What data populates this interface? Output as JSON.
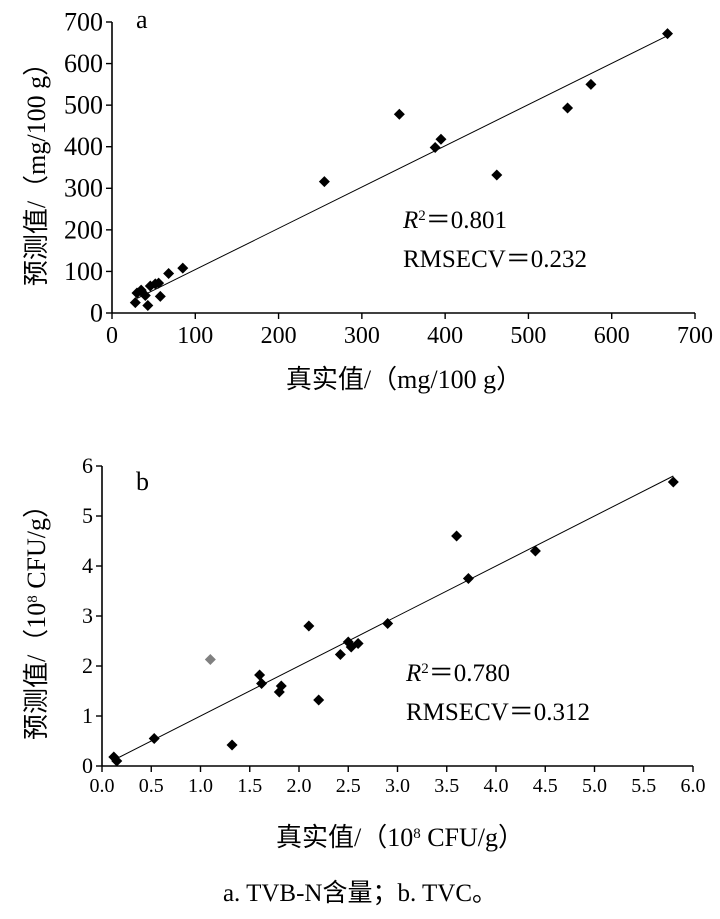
{
  "chart_data": [
    {
      "type": "scatter",
      "panel": "a",
      "xlabel": "真实值/（mg/100 g）",
      "ylabel": "预测值/（mg/100 g）",
      "xlim": [
        0,
        700
      ],
      "ylim": [
        0,
        700
      ],
      "xticks": [
        "0",
        "100",
        "200",
        "300",
        "400",
        "500",
        "600",
        "700"
      ],
      "yticks": [
        "0",
        "100",
        "200",
        "300",
        "400",
        "500",
        "600",
        "700"
      ],
      "annotation_r2_label": "R",
      "annotation_r2_value": "＝0.801",
      "annotation_rmsecv": "RMSECV＝0.232",
      "fit_line": [
        [
          30,
          35
        ],
        [
          667,
          667
        ]
      ],
      "points": [
        {
          "x": 28,
          "y": 25,
          "c": "#000000"
        },
        {
          "x": 30,
          "y": 48,
          "c": "#000000"
        },
        {
          "x": 35,
          "y": 55,
          "c": "#000000"
        },
        {
          "x": 40,
          "y": 42,
          "c": "#000000"
        },
        {
          "x": 43,
          "y": 18,
          "c": "#000000"
        },
        {
          "x": 46,
          "y": 65,
          "c": "#000000"
        },
        {
          "x": 52,
          "y": 70,
          "c": "#000000"
        },
        {
          "x": 56,
          "y": 72,
          "c": "#000000"
        },
        {
          "x": 58,
          "y": 40,
          "c": "#000000"
        },
        {
          "x": 68,
          "y": 95,
          "c": "#000000"
        },
        {
          "x": 85,
          "y": 108,
          "c": "#000000"
        },
        {
          "x": 255,
          "y": 316,
          "c": "#000000"
        },
        {
          "x": 345,
          "y": 478,
          "c": "#000000"
        },
        {
          "x": 388,
          "y": 398,
          "c": "#000000"
        },
        {
          "x": 395,
          "y": 418,
          "c": "#000000"
        },
        {
          "x": 462,
          "y": 332,
          "c": "#000000"
        },
        {
          "x": 547,
          "y": 493,
          "c": "#000000"
        },
        {
          "x": 575,
          "y": 550,
          "c": "#000000"
        },
        {
          "x": 667,
          "y": 672,
          "c": "#000000"
        }
      ]
    },
    {
      "type": "scatter",
      "panel": "b",
      "xlabel": "真实值/（10",
      "xlabel_sup": "8",
      "xlabel_tail": " CFU/g）",
      "ylabel": "预测值/（10",
      "ylabel_sup": "8",
      "ylabel_tail": " CFU/g）",
      "xlim": [
        0,
        6
      ],
      "ylim": [
        0,
        6
      ],
      "xticks": [
        "0.0",
        "0.5",
        "1.0",
        "1.5",
        "2.0",
        "2.5",
        "3.0",
        "3.5",
        "4.0",
        "4.5",
        "5.0",
        "5.5",
        "6.0"
      ],
      "yticks": [
        "0",
        "1",
        "2",
        "3",
        "4",
        "5",
        "6"
      ],
      "annotation_r2_label": "R",
      "annotation_r2_value": "＝0.780",
      "annotation_rmsecv": "RMSECV＝0.312",
      "fit_line": [
        [
          0.12,
          0.12
        ],
        [
          5.8,
          5.8
        ]
      ],
      "points": [
        {
          "x": 0.12,
          "y": 0.18,
          "c": "#000000"
        },
        {
          "x": 0.15,
          "y": 0.1,
          "c": "#000000"
        },
        {
          "x": 0.53,
          "y": 0.55,
          "c": "#000000"
        },
        {
          "x": 1.1,
          "y": 2.13,
          "c": "#808080"
        },
        {
          "x": 1.32,
          "y": 0.42,
          "c": "#000000"
        },
        {
          "x": 1.6,
          "y": 1.82,
          "c": "#000000"
        },
        {
          "x": 1.62,
          "y": 1.65,
          "c": "#000000"
        },
        {
          "x": 1.8,
          "y": 1.48,
          "c": "#000000"
        },
        {
          "x": 1.82,
          "y": 1.6,
          "c": "#000000"
        },
        {
          "x": 2.1,
          "y": 2.8,
          "c": "#000000"
        },
        {
          "x": 2.2,
          "y": 1.32,
          "c": "#000000"
        },
        {
          "x": 2.42,
          "y": 2.23,
          "c": "#000000"
        },
        {
          "x": 2.5,
          "y": 2.48,
          "c": "#000000"
        },
        {
          "x": 2.53,
          "y": 2.38,
          "c": "#000000"
        },
        {
          "x": 2.6,
          "y": 2.45,
          "c": "#000000"
        },
        {
          "x": 2.9,
          "y": 2.85,
          "c": "#000000"
        },
        {
          "x": 3.6,
          "y": 4.6,
          "c": "#000000"
        },
        {
          "x": 3.72,
          "y": 3.75,
          "c": "#000000"
        },
        {
          "x": 4.4,
          "y": 4.3,
          "c": "#000000"
        },
        {
          "x": 5.8,
          "y": 5.68,
          "c": "#000000"
        }
      ]
    }
  ],
  "caption": "a. TVB-N含量；b. TVC。"
}
